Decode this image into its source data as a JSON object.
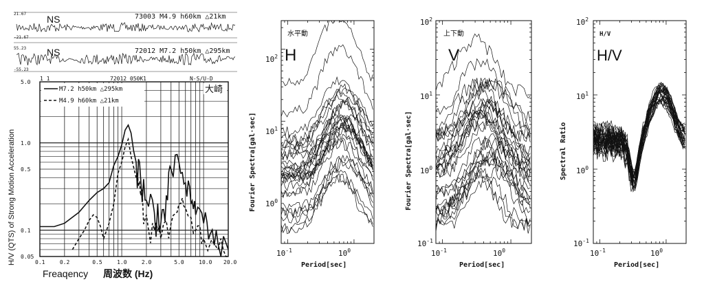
{
  "figure": {
    "seismograms": [
      {
        "top_value": "21.67",
        "bottom_value": "-21.67",
        "component": "NS",
        "header": "73003 M4.9 h60km △21km"
      },
      {
        "top_value": "55.23",
        "bottom_value": "-55.23",
        "component": "NS",
        "header": "72012 M7.2 h50km △295km"
      }
    ],
    "left_panel": {
      "header_left": "1  1",
      "header_mid": "72012  050K1",
      "header_right": "N-S/U-D",
      "station": "大崎",
      "legend": [
        {
          "label": "M7.2 h50km △295km",
          "style": "solid"
        },
        {
          "label": "M4.9 h60km △21km",
          "style": "dashed"
        }
      ],
      "ylabel": "H/V (QTS) of Strong Motion Acceleration",
      "xlabel_en": "Freaqency",
      "xlabel_jp": "周波数 (Hz)",
      "yticks": [
        "5.0",
        "1.0",
        "0.5",
        "0.1",
        "0.05"
      ],
      "xticks": [
        "0.1",
        "0.2",
        "0.5",
        "1.0",
        "2.0",
        "5.0",
        "10.0",
        "20.0"
      ]
    },
    "panel_h": {
      "title_jp": "水平動",
      "big_label": "H",
      "ylabel": "Fourier Spectra[gal·sec]",
      "xlabel": "Period[sec]"
    },
    "panel_v": {
      "title_jp": "上下動",
      "big_label": "V",
      "ylabel": "Fourier Spectra[gal·sec]",
      "xlabel": "Period[sec]"
    },
    "panel_hv": {
      "title_small": "H/V",
      "big_label": "H/V",
      "ylabel": "Spectral Ratio",
      "xlabel": "Period[sec]"
    }
  },
  "chart_data": [
    {
      "type": "line",
      "chart": "hv-strong-motion",
      "xscale": "log",
      "yscale": "log",
      "xlim": [
        0.1,
        20
      ],
      "ylim": [
        0.05,
        5
      ],
      "series": [
        {
          "name": "M7.2 h50km △295km",
          "x": [
            0.1,
            0.15,
            0.2,
            0.3,
            0.4,
            0.5,
            0.6,
            0.7,
            0.8,
            0.9,
            1.0,
            1.1,
            1.2,
            1.3,
            1.4,
            1.5,
            1.7,
            2.0,
            2.5,
            3.0,
            3.5,
            4.0,
            5.0,
            6.0,
            7.0,
            8.0,
            10.0,
            12.0,
            15.0,
            20.0
          ],
          "y": [
            0.11,
            0.11,
            0.12,
            0.16,
            0.22,
            0.27,
            0.3,
            0.35,
            0.55,
            0.7,
            0.95,
            1.4,
            1.6,
            1.3,
            0.8,
            0.6,
            0.4,
            0.22,
            0.16,
            0.12,
            0.25,
            0.5,
            0.6,
            0.35,
            0.2,
            0.15,
            0.12,
            0.09,
            0.07,
            0.06
          ]
        },
        {
          "name": "M4.9 h60km △21km",
          "x": [
            0.25,
            0.3,
            0.35,
            0.4,
            0.45,
            0.5,
            0.55,
            0.6,
            0.7,
            0.8,
            0.9,
            1.0,
            1.1,
            1.2,
            1.3,
            1.5,
            1.7,
            2.0,
            2.5,
            3.0,
            4.0,
            5.0,
            6.0,
            8.0,
            10.0,
            15.0,
            20.0
          ],
          "y": [
            0.06,
            0.08,
            0.1,
            0.13,
            0.15,
            0.14,
            0.11,
            0.08,
            0.12,
            0.2,
            0.45,
            0.6,
            0.9,
            1.1,
            0.7,
            0.4,
            0.25,
            0.15,
            0.1,
            0.08,
            0.12,
            0.2,
            0.18,
            0.1,
            0.08,
            0.06,
            0.05
          ]
        }
      ]
    },
    {
      "type": "line",
      "chart": "horizontal-fourier-spectra",
      "xscale": "log",
      "yscale": "log",
      "xlim": [
        0.08,
        2
      ],
      "ylim": [
        0.2,
        250
      ],
      "yticks": [
        "10²",
        "10¹",
        "10⁰"
      ],
      "xticks": [
        "10⁻¹",
        "10⁰"
      ],
      "peak_period": 0.7,
      "peak_value": 230,
      "curve_count": 30
    },
    {
      "type": "line",
      "chart": "vertical-fourier-spectra",
      "xscale": "log",
      "yscale": "log",
      "xlim": [
        0.08,
        2
      ],
      "ylim": [
        0.1,
        100
      ],
      "yticks": [
        "10²",
        "10¹",
        "10⁰",
        "10⁻¹"
      ],
      "xticks": [
        "10⁻¹",
        "10⁰"
      ],
      "peak_period": 0.35,
      "peak_value": 45,
      "curve_count": 30
    },
    {
      "type": "line",
      "chart": "hv-spectral-ratio",
      "xscale": "log",
      "yscale": "log",
      "xlim": [
        0.08,
        2
      ],
      "ylim": [
        0.1,
        100
      ],
      "yticks": [
        "10²",
        "10¹",
        "10⁰",
        "10⁻¹"
      ],
      "xticks": [
        "10⁻¹",
        "10⁰"
      ],
      "peak_period": 0.8,
      "peak_value": 9,
      "trough_period": 0.35,
      "trough_value": 0.6,
      "curve_count": 30
    }
  ]
}
